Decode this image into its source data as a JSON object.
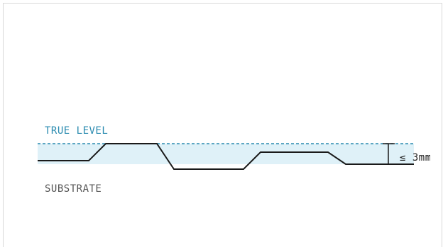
{
  "diagram": {
    "true_level_label": "TRUE LEVEL",
    "substrate_label": "SUBSTRATE",
    "tolerance_label": "≤ 3mm",
    "colors": {
      "true_level": "#2a8bb0",
      "band_fill": "#dff1f8",
      "profile": "#1a1a1a",
      "substrate_text": "#555555",
      "frame": "#d9d9d9"
    }
  }
}
